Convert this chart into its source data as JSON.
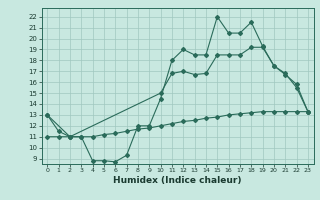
{
  "xlabel": "Humidex (Indice chaleur)",
  "bg_color": "#c8e8e0",
  "grid_color": "#a0c8c0",
  "line_color": "#2a6b5a",
  "xlim": [
    -0.5,
    23.5
  ],
  "ylim": [
    8.5,
    22.8
  ],
  "xticks": [
    0,
    1,
    2,
    3,
    4,
    5,
    6,
    7,
    8,
    9,
    10,
    11,
    12,
    13,
    14,
    15,
    16,
    17,
    18,
    19,
    20,
    21,
    22,
    23
  ],
  "yticks": [
    9,
    10,
    11,
    12,
    13,
    14,
    15,
    16,
    17,
    18,
    19,
    20,
    21,
    22
  ],
  "top_x": [
    0,
    1,
    2,
    3,
    4,
    5,
    6,
    7,
    8,
    9,
    10,
    11,
    12,
    13,
    14,
    15,
    16,
    17,
    18,
    19,
    20,
    21,
    22,
    23
  ],
  "top_y": [
    13.0,
    11.5,
    11.0,
    11.0,
    8.8,
    8.8,
    8.7,
    9.3,
    12.0,
    12.0,
    14.5,
    18.0,
    19.0,
    18.5,
    18.5,
    22.0,
    20.5,
    20.5,
    21.5,
    19.3,
    17.5,
    16.7,
    15.8,
    13.3
  ],
  "mid_x": [
    0,
    2,
    10,
    11,
    12,
    13,
    14,
    15,
    16,
    17,
    18,
    19,
    20,
    21,
    22,
    23
  ],
  "mid_y": [
    13.0,
    11.0,
    15.0,
    16.8,
    17.0,
    16.7,
    16.8,
    18.5,
    18.5,
    18.5,
    19.2,
    19.2,
    17.5,
    16.8,
    15.5,
    13.3
  ],
  "bot_x": [
    0,
    1,
    2,
    3,
    4,
    5,
    6,
    7,
    8,
    9,
    10,
    11,
    12,
    13,
    14,
    15,
    16,
    17,
    18,
    19,
    20,
    21,
    22,
    23
  ],
  "bot_y": [
    11.0,
    11.0,
    11.0,
    11.0,
    11.0,
    11.2,
    11.3,
    11.5,
    11.7,
    11.8,
    12.0,
    12.2,
    12.4,
    12.5,
    12.7,
    12.8,
    13.0,
    13.1,
    13.2,
    13.3,
    13.3,
    13.3,
    13.3,
    13.3
  ]
}
